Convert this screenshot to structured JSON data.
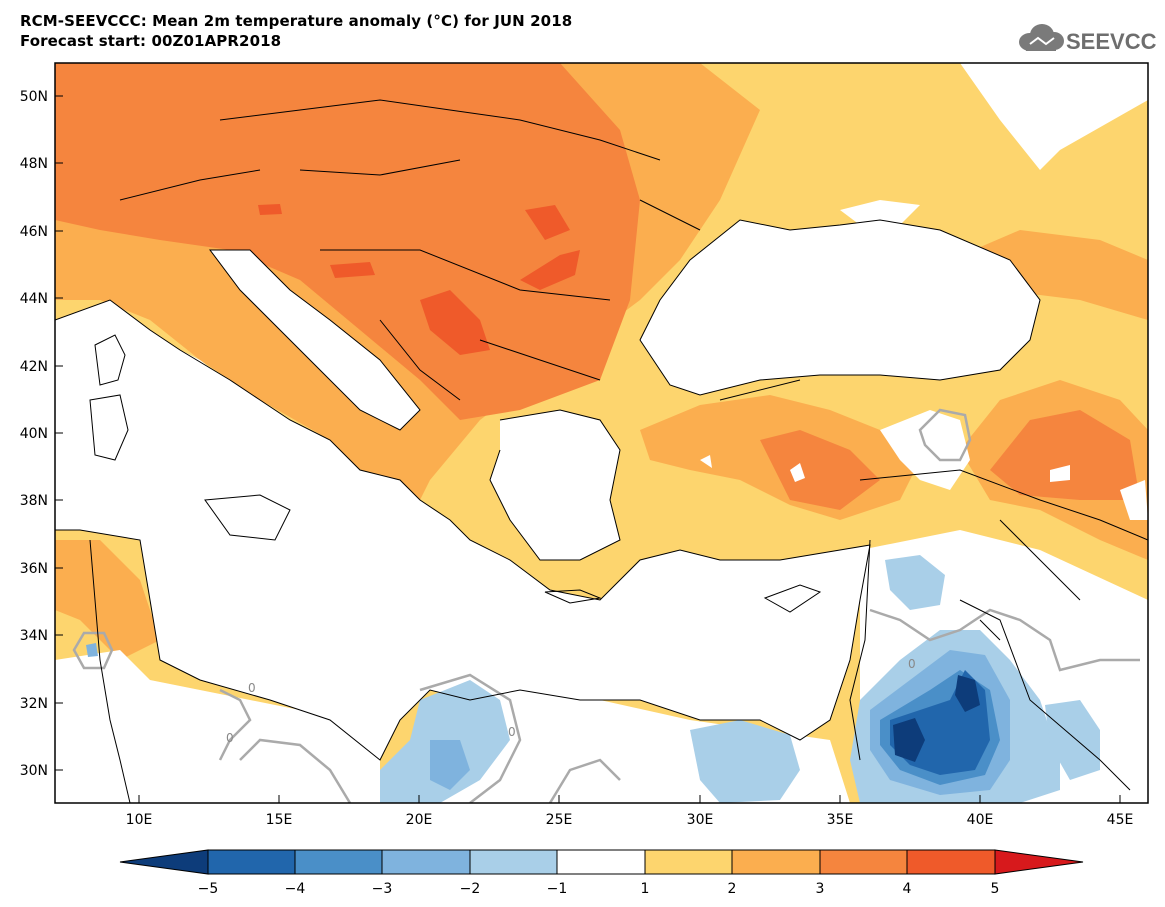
{
  "header": {
    "title": "RCM-SEEVCCC: Mean 2m temperature anomaly (°C) for JUN 2018",
    "subtitle": "Forecast start: 00Z01APR2018",
    "logo_text": "SEEVCCC"
  },
  "map": {
    "variable": "Mean 2m temperature anomaly",
    "units": "°C",
    "lon_range": [
      7,
      46
    ],
    "lat_range": [
      29,
      51
    ],
    "lat_ticks": [
      "50N",
      "48N",
      "46N",
      "44N",
      "42N",
      "40N",
      "38N",
      "36N",
      "34N",
      "32N",
      "30N"
    ],
    "lon_ticks": [
      "10E",
      "15E",
      "20E",
      "25E",
      "30E",
      "35E",
      "40E",
      "45E"
    ],
    "contour_labels": [
      "0",
      "0",
      "0",
      "0"
    ]
  },
  "legend": {
    "tick_labels": [
      "−5",
      "−4",
      "−3",
      "−2",
      "−1",
      "1",
      "2",
      "3",
      "4",
      "5"
    ],
    "colors": [
      "#0d3c7a",
      "#2166ac",
      "#4a8fc8",
      "#7fb3de",
      "#a9cfe8",
      "#ffffff",
      "#fdd56e",
      "#fbae4f",
      "#f5853e",
      "#ef5a2a",
      "#d7191c"
    ]
  }
}
